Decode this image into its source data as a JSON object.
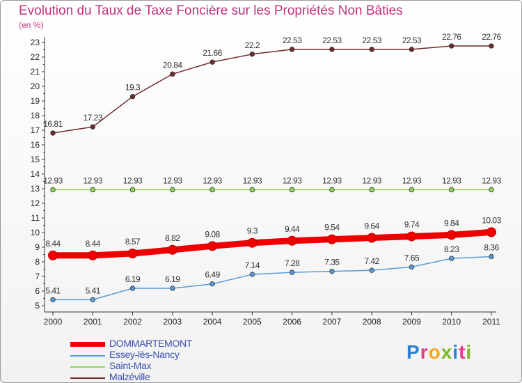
{
  "title": "Evolution du Taux de Taxe Foncière sur les Propriétés Non Bâties",
  "unit": "(en %)",
  "logo": {
    "letters": [
      "P",
      "r",
      "o",
      "x",
      "i",
      "t",
      "i"
    ],
    "colors": [
      "#2f7fd0",
      "#e83a8a",
      "#f5a623",
      "#7ab829",
      "#2f7fd0",
      "#e83a8a",
      "#7ab829"
    ]
  },
  "chart_data": {
    "type": "line",
    "x": [
      "2000",
      "2001",
      "2002",
      "2003",
      "2004",
      "2005",
      "2006",
      "2007",
      "2008",
      "2009",
      "2010",
      "2011"
    ],
    "ylim": [
      5,
      23
    ],
    "yticks": [
      5,
      6,
      7,
      8,
      9,
      10,
      11,
      12,
      13,
      14,
      15,
      16,
      17,
      18,
      19,
      20,
      21,
      22,
      23
    ],
    "grid": false,
    "legend_position": "bottom-left",
    "series": [
      {
        "name": "DOMMARTEMONT",
        "color": "#ee0000",
        "emphasis": true,
        "values": [
          8.44,
          8.44,
          8.57,
          8.82,
          9.08,
          9.3,
          9.44,
          9.54,
          9.64,
          9.74,
          9.84,
          10.03
        ],
        "labels": [
          "8.44",
          "8.44",
          "8.57",
          "8.82",
          "9.08",
          "9.3",
          "9.44",
          "9.54",
          "9.64",
          "9.74",
          "9.84",
          "10.03"
        ]
      },
      {
        "name": "Essey-lès-Nancy",
        "color": "#5a9bd5",
        "emphasis": false,
        "values": [
          5.41,
          5.41,
          6.19,
          6.19,
          6.49,
          7.14,
          7.28,
          7.35,
          7.42,
          7.65,
          8.23,
          8.36
        ],
        "labels": [
          "5.41",
          "5.41",
          "6.19",
          "6.19",
          "6.49",
          "7.14",
          "7.28",
          "7.35",
          "7.42",
          "7.65",
          "8.23",
          "8.36"
        ]
      },
      {
        "name": "Saint-Max",
        "color": "#8fd45a",
        "emphasis": false,
        "values": [
          12.93,
          12.93,
          12.93,
          12.93,
          12.93,
          12.93,
          12.93,
          12.93,
          12.93,
          12.93,
          12.93,
          12.93
        ],
        "labels": [
          "12.93",
          "12.93",
          "12.93",
          "12.93",
          "12.93",
          "12.93",
          "12.93",
          "12.93",
          "12.93",
          "12.93",
          "12.93",
          "12.93"
        ]
      },
      {
        "name": "Malzéville",
        "color": "#6e2a2a",
        "emphasis": false,
        "values": [
          16.81,
          17.23,
          19.3,
          20.84,
          21.66,
          22.2,
          22.53,
          22.53,
          22.53,
          22.53,
          22.76,
          22.76
        ],
        "labels": [
          "16.81",
          "17.23",
          "19.3",
          "20.84",
          "21.66",
          "22.2",
          "22.53",
          "22.53",
          "22.53",
          "22.53",
          "22.76",
          "22.76"
        ]
      }
    ]
  }
}
